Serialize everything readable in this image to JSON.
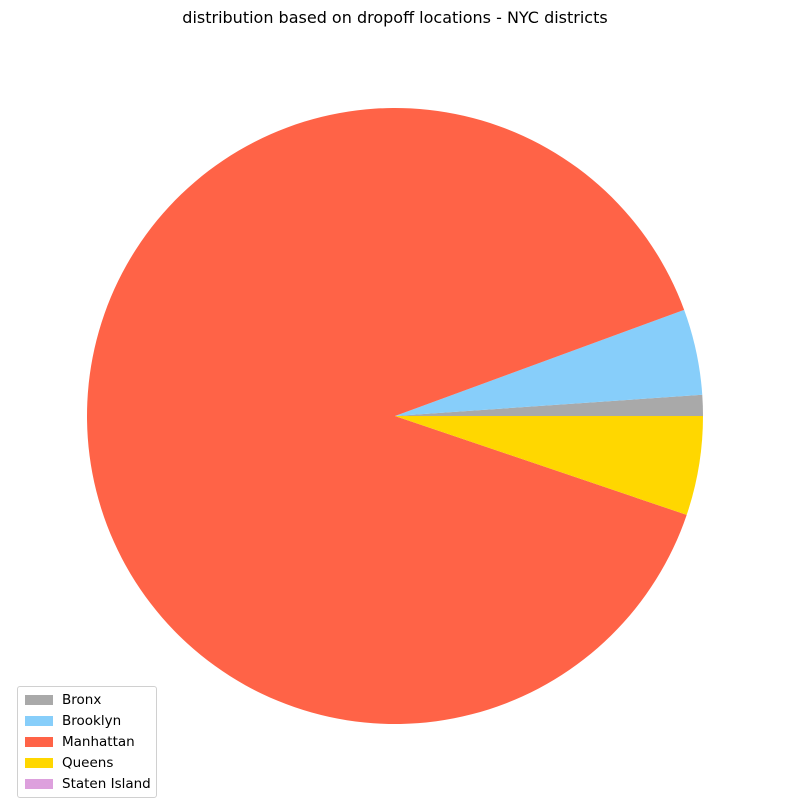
{
  "chart_data": {
    "type": "pie",
    "title": "distribution based on dropoff locations - NYC districts",
    "legend_position": "lower-left",
    "start_angle_deg": 0,
    "direction": "counterclockwise",
    "slices": [
      {
        "label": "Bronx",
        "percent": 1.1,
        "color": "#a9a9a9"
      },
      {
        "label": "Brooklyn",
        "percent": 4.5,
        "color": "#87cefa"
      },
      {
        "label": "Manhattan",
        "percent": 89.2,
        "color": "#ff6347"
      },
      {
        "label": "Queens",
        "percent": 5.2,
        "color": "#ffd700"
      },
      {
        "label": "Staten Island",
        "percent": 0.0,
        "color": "#dda0dd"
      }
    ]
  }
}
